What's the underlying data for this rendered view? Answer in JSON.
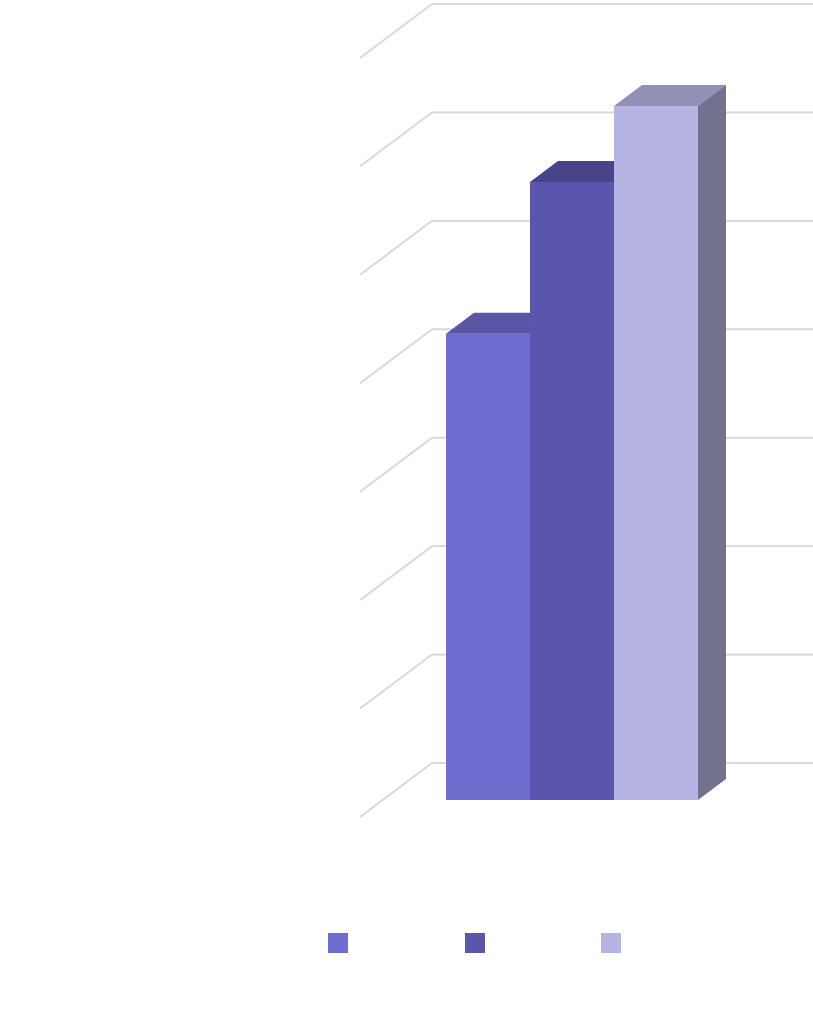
{
  "chart_data": {
    "type": "bar3d",
    "categories": [
      null
    ],
    "series": [
      {
        "color": "#6f6ccf",
        "values": [
          4.3
        ]
      },
      {
        "color": "#5a55ad",
        "values": [
          5.7
        ]
      },
      {
        "color": "#b5b4e3",
        "values": [
          6.4
        ]
      }
    ],
    "ylim": [
      0,
      7
    ],
    "yticks": [
      0,
      1,
      2,
      3,
      4,
      5,
      6,
      7
    ],
    "grid": true
  }
}
